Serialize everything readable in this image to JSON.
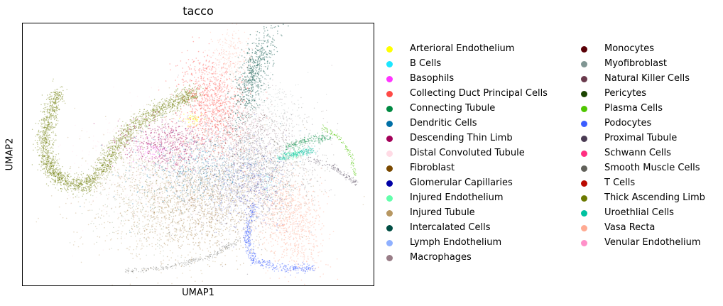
{
  "chart_data": {
    "type": "scatter",
    "title": "tacco",
    "xlabel": "UMAP1",
    "ylabel": "UMAP2",
    "grid": false,
    "ticks": "none",
    "legend_placement": "right, outside plot, two columns",
    "series": [
      {
        "name": "Arterioral Endothelium",
        "color": "#ffff00"
      },
      {
        "name": "B Cells",
        "color": "#1ce6ff"
      },
      {
        "name": "Basophils",
        "color": "#ff34ff"
      },
      {
        "name": "Collecting Duct Principal Cells",
        "color": "#ff4a46"
      },
      {
        "name": "Connecting Tubule",
        "color": "#008941"
      },
      {
        "name": "Dendritic Cells",
        "color": "#006fa6"
      },
      {
        "name": "Descending Thin Limb",
        "color": "#a30059"
      },
      {
        "name": "Distal Convoluted Tubule",
        "color": "#ffdbe5"
      },
      {
        "name": "Fibroblast",
        "color": "#7a4900"
      },
      {
        "name": "Glomerular Capillaries",
        "color": "#0000a6"
      },
      {
        "name": "Injured Endothelium",
        "color": "#63ffac"
      },
      {
        "name": "Injured Tubule",
        "color": "#b79762"
      },
      {
        "name": "Intercalated Cells",
        "color": "#004d43"
      },
      {
        "name": "Lymph Endothelium",
        "color": "#8fb0ff"
      },
      {
        "name": "Macrophages",
        "color": "#997d87"
      },
      {
        "name": "Monocytes",
        "color": "#5a0007"
      },
      {
        "name": "Myofibroblast",
        "color": "#809693"
      },
      {
        "name": "Natural Killer Cells",
        "color": "#6a3a4c"
      },
      {
        "name": "Pericytes",
        "color": "#1b4400"
      },
      {
        "name": "Plasma Cells",
        "color": "#4fc601"
      },
      {
        "name": "Podocytes",
        "color": "#3b5dff"
      },
      {
        "name": "Proximal Tubule",
        "color": "#4a3b53"
      },
      {
        "name": "Schwann Cells",
        "color": "#ff2f80"
      },
      {
        "name": "Smooth Muscle Cells",
        "color": "#61615a"
      },
      {
        "name": "T Cells",
        "color": "#ba0900"
      },
      {
        "name": "Thick Ascending Limb",
        "color": "#6b7900"
      },
      {
        "name": "Uroethlial Cells",
        "color": "#00c2a0"
      },
      {
        "name": "Vasa Recta",
        "color": "#ffaa92"
      },
      {
        "name": "Venular Endothelium",
        "color": "#ff90c9"
      }
    ]
  }
}
